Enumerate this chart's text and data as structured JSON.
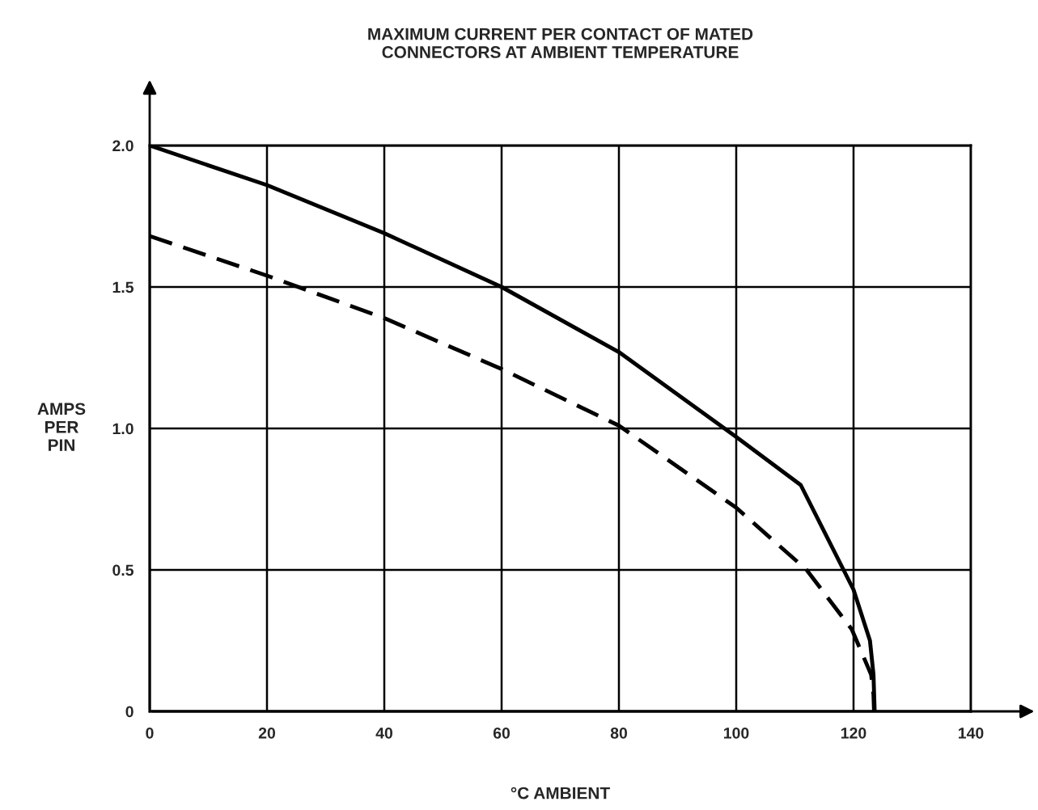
{
  "chart_data": {
    "type": "line",
    "title": "MAXIMUM CURRENT PER CONTACT OF MATED\nCONNECTORS AT AMBIENT TEMPERATURE",
    "xlabel": "°C AMBIENT",
    "ylabel": "AMPS\nPER\nPIN",
    "series": [
      {
        "color": "#000000",
        "line_style": "solid",
        "x": [
          0,
          20,
          40,
          60,
          80,
          100,
          111,
          118.3,
          120,
          122.8,
          123.4,
          123.6
        ],
        "values": [
          2.0,
          1.86,
          1.69,
          1.5,
          1.27,
          0.97,
          0.8,
          0.5,
          0.43,
          0.25,
          0.13,
          0
        ]
      },
      {
        "color": "#000000",
        "line_style": "dashed",
        "x": [
          0,
          20,
          40,
          60,
          80,
          100,
          112,
          119.7,
          123,
          123.4,
          123.5
        ],
        "values": [
          1.68,
          1.54,
          1.39,
          1.21,
          1.01,
          0.72,
          0.5,
          0.29,
          0.13,
          0.06,
          0
        ]
      }
    ],
    "xlim": [
      0,
      140
    ],
    "ylim": [
      0,
      2.0
    ],
    "xticks": [
      0,
      20,
      40,
      60,
      80,
      100,
      120,
      140
    ],
    "yticks": [
      0,
      {
        "value": 0.5,
        "label": "0.5"
      },
      {
        "value": 1.0,
        "label": "1.0"
      },
      {
        "value": 1.5,
        "label": "1.5"
      },
      {
        "value": 2.0,
        "label": "2.0"
      }
    ],
    "grid": true,
    "legend": false
  }
}
